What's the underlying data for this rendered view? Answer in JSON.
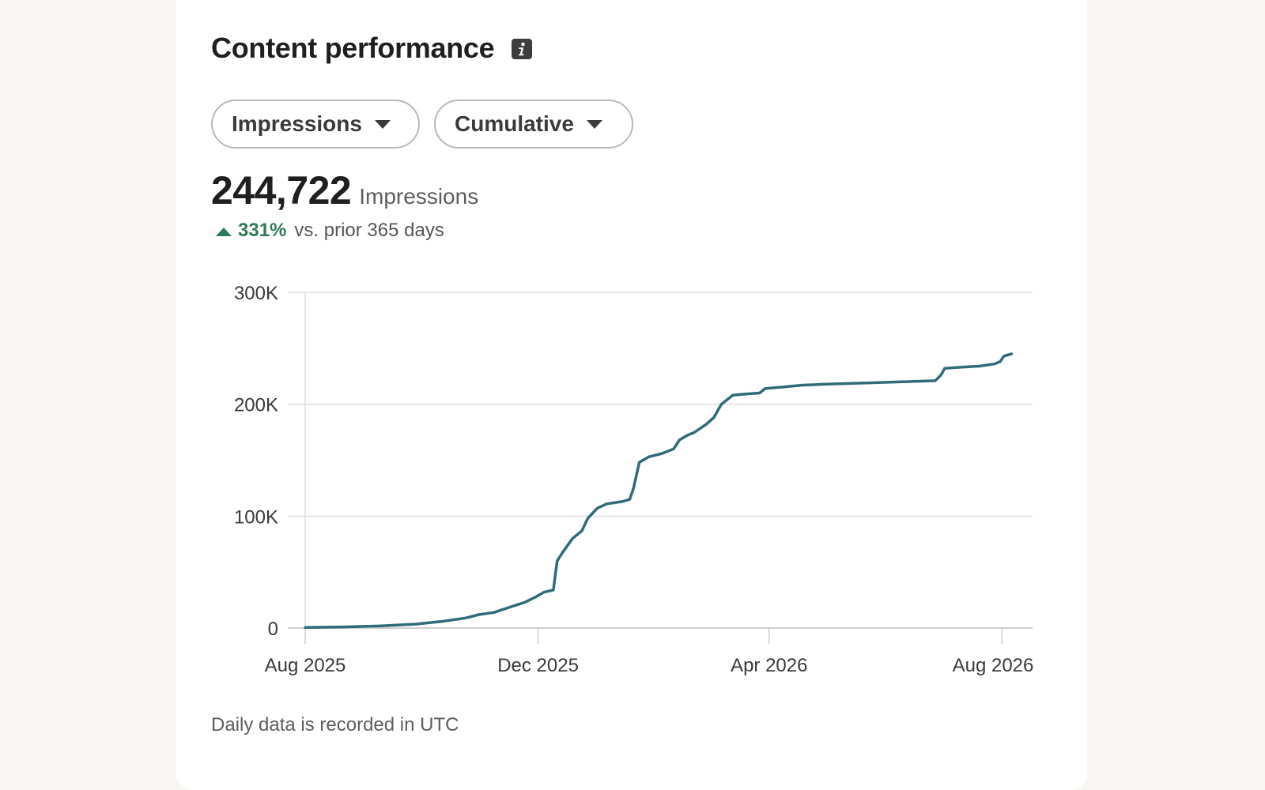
{
  "card": {
    "title": "Content performance",
    "info_icon": "info-icon"
  },
  "filters": {
    "metric": {
      "label": "Impressions",
      "icon": "caret-down-icon"
    },
    "mode": {
      "label": "Cumulative",
      "icon": "caret-down-icon"
    }
  },
  "summary": {
    "value": "244,722",
    "unit": "Impressions",
    "change_pct": "331%",
    "change_text": "vs. prior 365 days",
    "change_icon": "triangle-up-icon",
    "change_color": "#2f7a58"
  },
  "footnote": "Daily data is recorded in UTC",
  "colors": {
    "line": "#2f6b78",
    "grid": "#dddddd",
    "axis": "#cfcfcf",
    "tick_text": "#3a3a3a"
  },
  "chart_data": {
    "type": "line",
    "title": "",
    "xlabel": "",
    "ylabel": "",
    "ylim": [
      0,
      300000
    ],
    "yticks": [
      0,
      100000,
      200000,
      300000
    ],
    "ytick_labels": [
      "0",
      "100K",
      "200K",
      "300K"
    ],
    "xlim": [
      "2025-08-01",
      "2026-08-17"
    ],
    "xticks": [
      "2025-08-01",
      "2025-12-01",
      "2026-04-01",
      "2026-08-01"
    ],
    "xtick_labels": [
      "Aug 2025",
      "Dec 2025",
      "Apr 2026",
      "Aug 2026"
    ],
    "grid": true,
    "legend": "none",
    "series": [
      {
        "points": [
          [
            "2025-08-01",
            500
          ],
          [
            "2025-08-21",
            1000
          ],
          [
            "2025-09-10",
            2000
          ],
          [
            "2025-09-28",
            3500
          ],
          [
            "2025-10-12",
            6000
          ],
          [
            "2025-10-24",
            9000
          ],
          [
            "2025-10-31",
            12000
          ],
          [
            "2025-11-08",
            14000
          ],
          [
            "2025-11-15",
            18000
          ],
          [
            "2025-11-24",
            23000
          ],
          [
            "2025-11-30",
            28000
          ],
          [
            "2025-12-04",
            32000
          ],
          [
            "2025-12-09",
            34000
          ],
          [
            "2025-12-11",
            60000
          ],
          [
            "2025-12-14",
            68000
          ],
          [
            "2025-12-19",
            80000
          ],
          [
            "2025-12-24",
            87000
          ],
          [
            "2025-12-27",
            98000
          ],
          [
            "2026-01-01",
            107000
          ],
          [
            "2026-01-06",
            111000
          ],
          [
            "2026-01-14",
            113000
          ],
          [
            "2026-01-18",
            115000
          ],
          [
            "2026-01-20",
            125000
          ],
          [
            "2026-01-23",
            148000
          ],
          [
            "2026-01-28",
            153000
          ],
          [
            "2026-02-04",
            156000
          ],
          [
            "2026-02-10",
            160000
          ],
          [
            "2026-02-13",
            168000
          ],
          [
            "2026-02-17",
            172000
          ],
          [
            "2026-02-21",
            175000
          ],
          [
            "2026-02-27",
            182000
          ],
          [
            "2026-03-03",
            188000
          ],
          [
            "2026-03-07",
            200000
          ],
          [
            "2026-03-13",
            208000
          ],
          [
            "2026-03-19",
            209000
          ],
          [
            "2026-03-27",
            210000
          ],
          [
            "2026-03-30",
            214000
          ],
          [
            "2026-04-06",
            215000
          ],
          [
            "2026-04-18",
            217000
          ],
          [
            "2026-05-01",
            218000
          ],
          [
            "2026-05-22",
            219000
          ],
          [
            "2026-06-10",
            220000
          ],
          [
            "2026-06-27",
            221000
          ],
          [
            "2026-06-30",
            226000
          ],
          [
            "2026-07-02",
            232000
          ],
          [
            "2026-07-10",
            233000
          ],
          [
            "2026-07-20",
            234000
          ],
          [
            "2026-07-28",
            236000
          ],
          [
            "2026-07-31",
            238000
          ],
          [
            "2026-08-02",
            243000
          ],
          [
            "2026-08-06",
            245000
          ]
        ]
      }
    ]
  }
}
